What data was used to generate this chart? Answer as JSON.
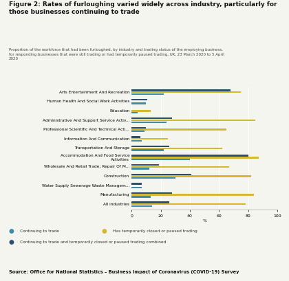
{
  "title": "Figure 2: Rates of furloughing varied widely across industry, particularly for\nthose businesses continuing to trade",
  "subtitle": "Proportion of the workforce that had been furloughed, by industry and trading status of the employing business,\nfor responding businesses that were still trading or had temporarily paused trading, UK, 23 March 2020 to 5 April\n2020",
  "source": "Source: Office for National Statistics – Business Impact of Coronavirus (COVID-19) Survey",
  "categories": [
    "Arts Entertainment And Recreation",
    "Human Health And Social Work Activities",
    "Education",
    "Administrative And Support Service Activ...",
    "Professional Scientific And Technical Acti...",
    "Information And Communication",
    "Transportation And Storage",
    "Accommodation And Food Service\nActivities",
    "Wholesale And Retail Trade; Repair Of M...",
    "Construction",
    "Water Supply Sewerage Waste Managem...",
    "Manufacturing",
    "All industries"
  ],
  "continuing_to_trade": [
    22,
    10,
    4,
    24,
    9,
    7,
    22,
    40,
    12,
    30,
    7,
    13,
    14
  ],
  "has_temporarily_closed": [
    75,
    null,
    13,
    85,
    65,
    25,
    62,
    87,
    67,
    82,
    null,
    84,
    78
  ],
  "combined": [
    68,
    11,
    null,
    28,
    10,
    6,
    26,
    80,
    19,
    41,
    7,
    28,
    26
  ],
  "color_continuing": "#3d8da8",
  "color_closed": "#d4b830",
  "color_combined": "#2b4f6e",
  "xlabel": "%",
  "xlim": [
    0,
    100
  ],
  "xticks": [
    0,
    20,
    40,
    60,
    80,
    100
  ],
  "legend_labels": [
    "Continuing to trade",
    "Has temporarily closed or paused trading",
    "Continuing to trade and temporarily closed or paused trading combined"
  ],
  "background_color": "#f5f5f0"
}
